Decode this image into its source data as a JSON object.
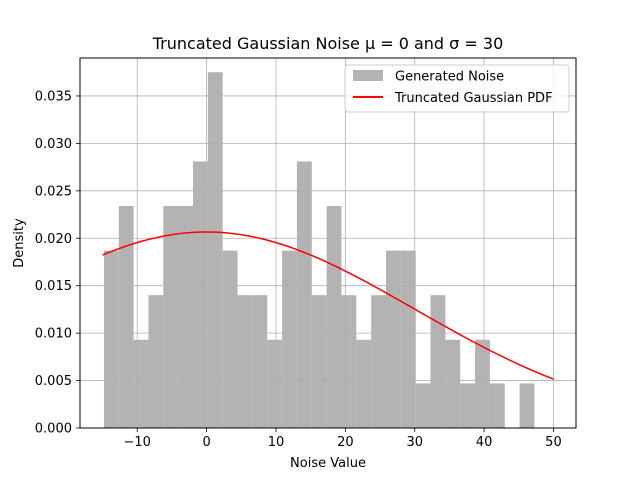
{
  "chart_data": {
    "type": "bar",
    "title": "Truncated Gaussian Noise μ = 0 and σ = 30",
    "xlabel": "Noise Value",
    "ylabel": "Density",
    "xlim": [
      -18.25,
      53.25
    ],
    "ylim": [
      0,
      0.039
    ],
    "xticks": [
      -10,
      0,
      10,
      20,
      30,
      40,
      50
    ],
    "yticks": [
      0.0,
      0.005,
      0.01,
      0.015,
      0.02,
      0.025,
      0.03,
      0.035
    ],
    "ytick_labels": [
      "0.000",
      "0.005",
      "0.010",
      "0.015",
      "0.020",
      "0.025",
      "0.030",
      "0.035"
    ],
    "grid": true,
    "legend_position": "upper-right",
    "histogram": {
      "name": "Generated Noise",
      "color": "#b3b3b3",
      "bin_start": -14.8,
      "bin_width": 2.14,
      "densities": [
        0.0187,
        0.0234,
        0.0093,
        0.014,
        0.0234,
        0.0234,
        0.0281,
        0.0375,
        0.0187,
        0.014,
        0.014,
        0.0093,
        0.0187,
        0.0281,
        0.014,
        0.0234,
        0.014,
        0.0093,
        0.014,
        0.0187,
        0.0187,
        0.0047,
        0.014,
        0.0093,
        0.0047,
        0.0093,
        0.0047,
        0.0,
        0.0047,
        0.0
      ]
    },
    "pdf": {
      "name": "Truncated Gaussian PDF",
      "color": "#ff0000",
      "mu": 0,
      "sigma": 30,
      "x_range": [
        -15,
        50
      ]
    }
  }
}
